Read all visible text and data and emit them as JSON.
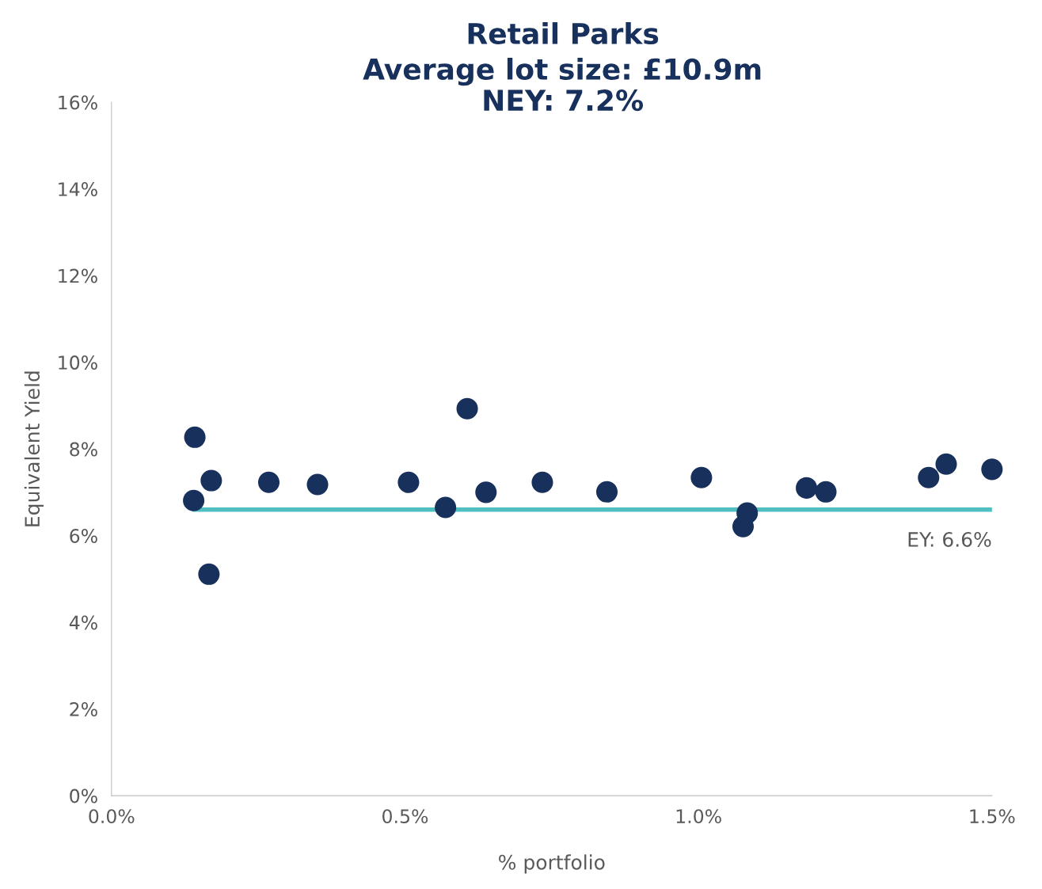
{
  "chart_data": {
    "type": "scatter",
    "title": "Retail Parks",
    "subtitle": "Average lot size: £10.9m\nNEY: 7.2%",
    "xlabel": "% portfolio",
    "ylabel": "Equivalent Yield",
    "series": [
      {
        "color": "#17305c",
        "marker": "circle",
        "x": [
          0.142,
          0.14,
          0.17,
          0.166,
          0.268,
          0.351,
          0.506,
          0.569,
          0.606,
          0.638,
          0.734,
          0.844,
          1.005,
          1.083,
          1.076,
          1.184,
          1.217,
          1.392,
          1.422,
          1.5
        ],
        "values": [
          8.27,
          6.81,
          7.27,
          5.11,
          7.23,
          7.18,
          7.23,
          6.65,
          8.93,
          7.0,
          7.23,
          7.01,
          7.34,
          6.52,
          6.21,
          7.1,
          7.01,
          7.34,
          7.65,
          7.53
        ]
      },
      {
        "type": "line",
        "marker": "none",
        "color": "#4fbfbf",
        "x": [
          0.14,
          1.5
        ],
        "values": [
          6.6,
          6.6
        ]
      }
    ],
    "annotations": [
      {
        "text": "EY: 6.6%",
        "x": 1.5,
        "y": 6.6
      }
    ],
    "xlim": [
      0,
      1.5
    ],
    "ylim": [
      0,
      16
    ],
    "xticks": [
      {
        "value": 0,
        "label": "0.0%"
      },
      {
        "value": 0.5,
        "label": "0.5%"
      },
      {
        "value": 1.0,
        "label": "1.0%"
      },
      {
        "value": 1.5,
        "label": "1.5%"
      }
    ],
    "yticks": [
      {
        "value": 0,
        "label": "0%"
      },
      {
        "value": 2,
        "label": "2%"
      },
      {
        "value": 4,
        "label": "4%"
      },
      {
        "value": 6,
        "label": "6%"
      },
      {
        "value": 8,
        "label": "8%"
      },
      {
        "value": 10,
        "label": "10%"
      },
      {
        "value": 12,
        "label": "12%"
      },
      {
        "value": 14,
        "label": "14%"
      },
      {
        "value": 16,
        "label": "16%"
      }
    ],
    "grid": false,
    "legend": false
  }
}
